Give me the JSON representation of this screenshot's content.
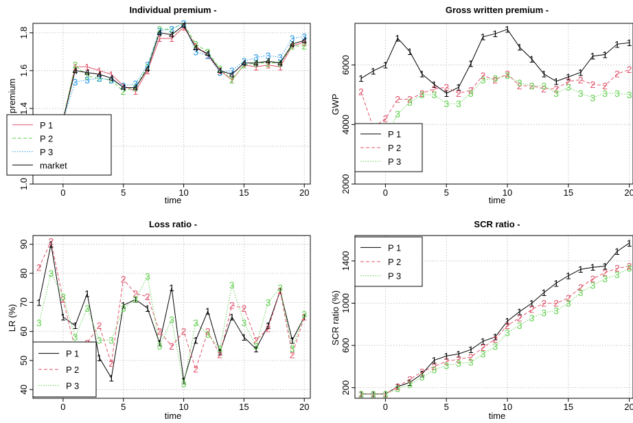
{
  "chart_data": [
    {
      "type": "line",
      "title": "Individual premium -",
      "xlabel": "time",
      "ylabel": "ind. premium",
      "xlim": [
        -2,
        20
      ],
      "ylim": [
        1.0,
        1.85
      ],
      "xticks": [
        0,
        5,
        10,
        15,
        20
      ],
      "yticks": [
        1.0,
        1.2,
        1.4,
        1.6,
        1.8
      ],
      "grid": true,
      "legend_position": "bottom-left",
      "x": [
        -2,
        -1,
        0,
        1,
        2,
        3,
        4,
        5,
        6,
        7,
        8,
        9,
        10,
        11,
        12,
        13,
        14,
        15,
        16,
        17,
        18,
        19,
        20
      ],
      "series": [
        {
          "name": "P 1",
          "color": "#DF536B",
          "dash": "solid",
          "marker": "1",
          "values": [
            1.33,
            1.33,
            1.34,
            1.62,
            1.62,
            1.6,
            1.58,
            1.52,
            1.49,
            1.6,
            1.77,
            1.77,
            1.83,
            1.73,
            1.68,
            1.6,
            1.55,
            1.63,
            1.62,
            1.63,
            1.62,
            1.73,
            1.75
          ]
        },
        {
          "name": "P 2",
          "color": "#61D04F",
          "dash": "dashed",
          "marker": "2",
          "values": [
            1.33,
            1.33,
            1.34,
            1.63,
            1.57,
            1.56,
            1.55,
            1.49,
            1.51,
            1.62,
            1.82,
            1.82,
            1.85,
            1.74,
            1.7,
            1.61,
            1.55,
            1.63,
            1.64,
            1.64,
            1.64,
            1.73,
            1.73
          ]
        },
        {
          "name": "P 3",
          "color": "#2297E6",
          "dash": "dotted",
          "marker": "3",
          "values": [
            1.33,
            1.33,
            1.34,
            1.54,
            1.55,
            1.56,
            1.55,
            1.52,
            1.53,
            1.63,
            1.81,
            1.82,
            1.85,
            1.7,
            1.68,
            1.59,
            1.6,
            1.65,
            1.67,
            1.68,
            1.67,
            1.77,
            1.78
          ]
        },
        {
          "name": "market",
          "color": "#000000",
          "dash": "solid",
          "marker": "4",
          "values": [
            1.33,
            1.33,
            1.34,
            1.6,
            1.59,
            1.58,
            1.56,
            1.51,
            1.51,
            1.61,
            1.8,
            1.79,
            1.84,
            1.72,
            1.69,
            1.6,
            1.58,
            1.64,
            1.64,
            1.65,
            1.64,
            1.74,
            1.76
          ]
        }
      ]
    },
    {
      "type": "line",
      "title": "Gross written premium -",
      "xlabel": "time",
      "ylabel": "GWP",
      "xlim": [
        -2,
        20
      ],
      "ylim": [
        2000,
        7400
      ],
      "xticks": [
        0,
        5,
        10,
        15,
        20
      ],
      "yticks": [
        2000,
        4000,
        6000
      ],
      "grid": true,
      "legend_position": "bottom-left",
      "x": [
        -2,
        -1,
        0,
        1,
        2,
        3,
        4,
        5,
        6,
        7,
        8,
        9,
        10,
        11,
        12,
        13,
        14,
        15,
        16,
        17,
        18,
        19,
        20
      ],
      "series": [
        {
          "name": "P 1",
          "color": "#000000",
          "dash": "solid",
          "marker": "1",
          "values": [
            5550,
            5800,
            6000,
            6900,
            6450,
            5700,
            5350,
            5050,
            5250,
            6050,
            6950,
            7050,
            7200,
            6600,
            6200,
            5700,
            5450,
            5600,
            5750,
            6300,
            6350,
            6700,
            6750
          ]
        },
        {
          "name": "P 2",
          "color": "#DF536B",
          "dash": "dashed",
          "marker": "2",
          "values": [
            5100,
            3900,
            4200,
            4850,
            4850,
            5050,
            5200,
            5250,
            5050,
            5150,
            5650,
            5500,
            5700,
            5300,
            5300,
            5200,
            5200,
            5450,
            5500,
            5350,
            5300,
            5700,
            5850
          ]
        },
        {
          "name": "P 3",
          "color": "#61D04F",
          "dash": "dotted",
          "marker": "3",
          "values": [
            3600,
            3600,
            3600,
            4350,
            4750,
            5000,
            5000,
            4700,
            4700,
            5050,
            5500,
            5550,
            5650,
            5400,
            5300,
            5300,
            5050,
            5250,
            5050,
            4900,
            5050,
            5050,
            5000
          ]
        }
      ]
    },
    {
      "type": "line",
      "title": "Loss ratio -",
      "xlabel": "time",
      "ylabel": "LR (%)",
      "xlim": [
        -2,
        20
      ],
      "ylim": [
        37,
        93
      ],
      "xticks": [
        0,
        5,
        10,
        15,
        20
      ],
      "yticks": [
        40,
        50,
        60,
        70,
        80,
        90
      ],
      "grid": true,
      "legend_position": "bottom-left",
      "x": [
        -2,
        -1,
        0,
        1,
        2,
        3,
        4,
        5,
        6,
        7,
        8,
        9,
        10,
        11,
        12,
        13,
        14,
        15,
        16,
        17,
        18,
        19,
        20
      ],
      "series": [
        {
          "name": "P 1",
          "color": "#000000",
          "dash": "solid",
          "marker": "1",
          "values": [
            70,
            90,
            65,
            62,
            73,
            51,
            44,
            69,
            71,
            68,
            56,
            75,
            43,
            57,
            67,
            53,
            65,
            58,
            54,
            62,
            74,
            57,
            65
          ]
        },
        {
          "name": "P 2",
          "color": "#DF536B",
          "dash": "dashed",
          "marker": "2",
          "values": [
            82,
            91,
            71,
            54,
            56,
            62,
            49,
            78,
            73,
            72,
            60,
            55,
            60,
            47,
            60,
            52,
            69,
            68,
            57,
            61,
            74,
            52,
            65
          ]
        },
        {
          "name": "P 3",
          "color": "#61D04F",
          "dash": "dotted",
          "marker": "3",
          "values": [
            63,
            80,
            72,
            58,
            68,
            57,
            57,
            68,
            71,
            79,
            55,
            64,
            42,
            63,
            59,
            54,
            76,
            63,
            55,
            70,
            75,
            54,
            66
          ]
        }
      ]
    },
    {
      "type": "line",
      "title": "SCR ratio -",
      "xlabel": "time",
      "ylabel": "SCR ratio (%)",
      "xlim": [
        -2,
        20
      ],
      "ylim": [
        100,
        1640
      ],
      "xticks": [
        0,
        5,
        10,
        15,
        20
      ],
      "yticks": [
        200,
        600,
        1000,
        1400
      ],
      "grid": true,
      "legend_position": "top-left",
      "x": [
        -2,
        -1,
        0,
        1,
        2,
        3,
        4,
        5,
        6,
        7,
        8,
        9,
        10,
        11,
        12,
        13,
        14,
        15,
        16,
        17,
        18,
        19,
        20
      ],
      "series": [
        {
          "name": "P 1",
          "color": "#000000",
          "dash": "solid",
          "marker": "1",
          "values": [
            140,
            140,
            140,
            210,
            250,
            330,
            460,
            500,
            520,
            560,
            640,
            680,
            830,
            920,
            1000,
            1100,
            1190,
            1260,
            1320,
            1340,
            1350,
            1490,
            1570
          ]
        },
        {
          "name": "P 2",
          "color": "#DF536B",
          "dash": "dashed",
          "marker": "2",
          "values": [
            140,
            140,
            140,
            210,
            280,
            350,
            400,
            450,
            470,
            490,
            580,
            660,
            790,
            860,
            940,
            1000,
            1000,
            1050,
            1150,
            1230,
            1290,
            1330,
            1350
          ]
        },
        {
          "name": "P 3",
          "color": "#61D04F",
          "dash": "dotted",
          "marker": "3",
          "values": [
            140,
            140,
            140,
            190,
            230,
            300,
            370,
            410,
            430,
            440,
            520,
            590,
            720,
            790,
            860,
            910,
            930,
            1000,
            1100,
            1170,
            1230,
            1270,
            1330
          ]
        }
      ]
    }
  ]
}
